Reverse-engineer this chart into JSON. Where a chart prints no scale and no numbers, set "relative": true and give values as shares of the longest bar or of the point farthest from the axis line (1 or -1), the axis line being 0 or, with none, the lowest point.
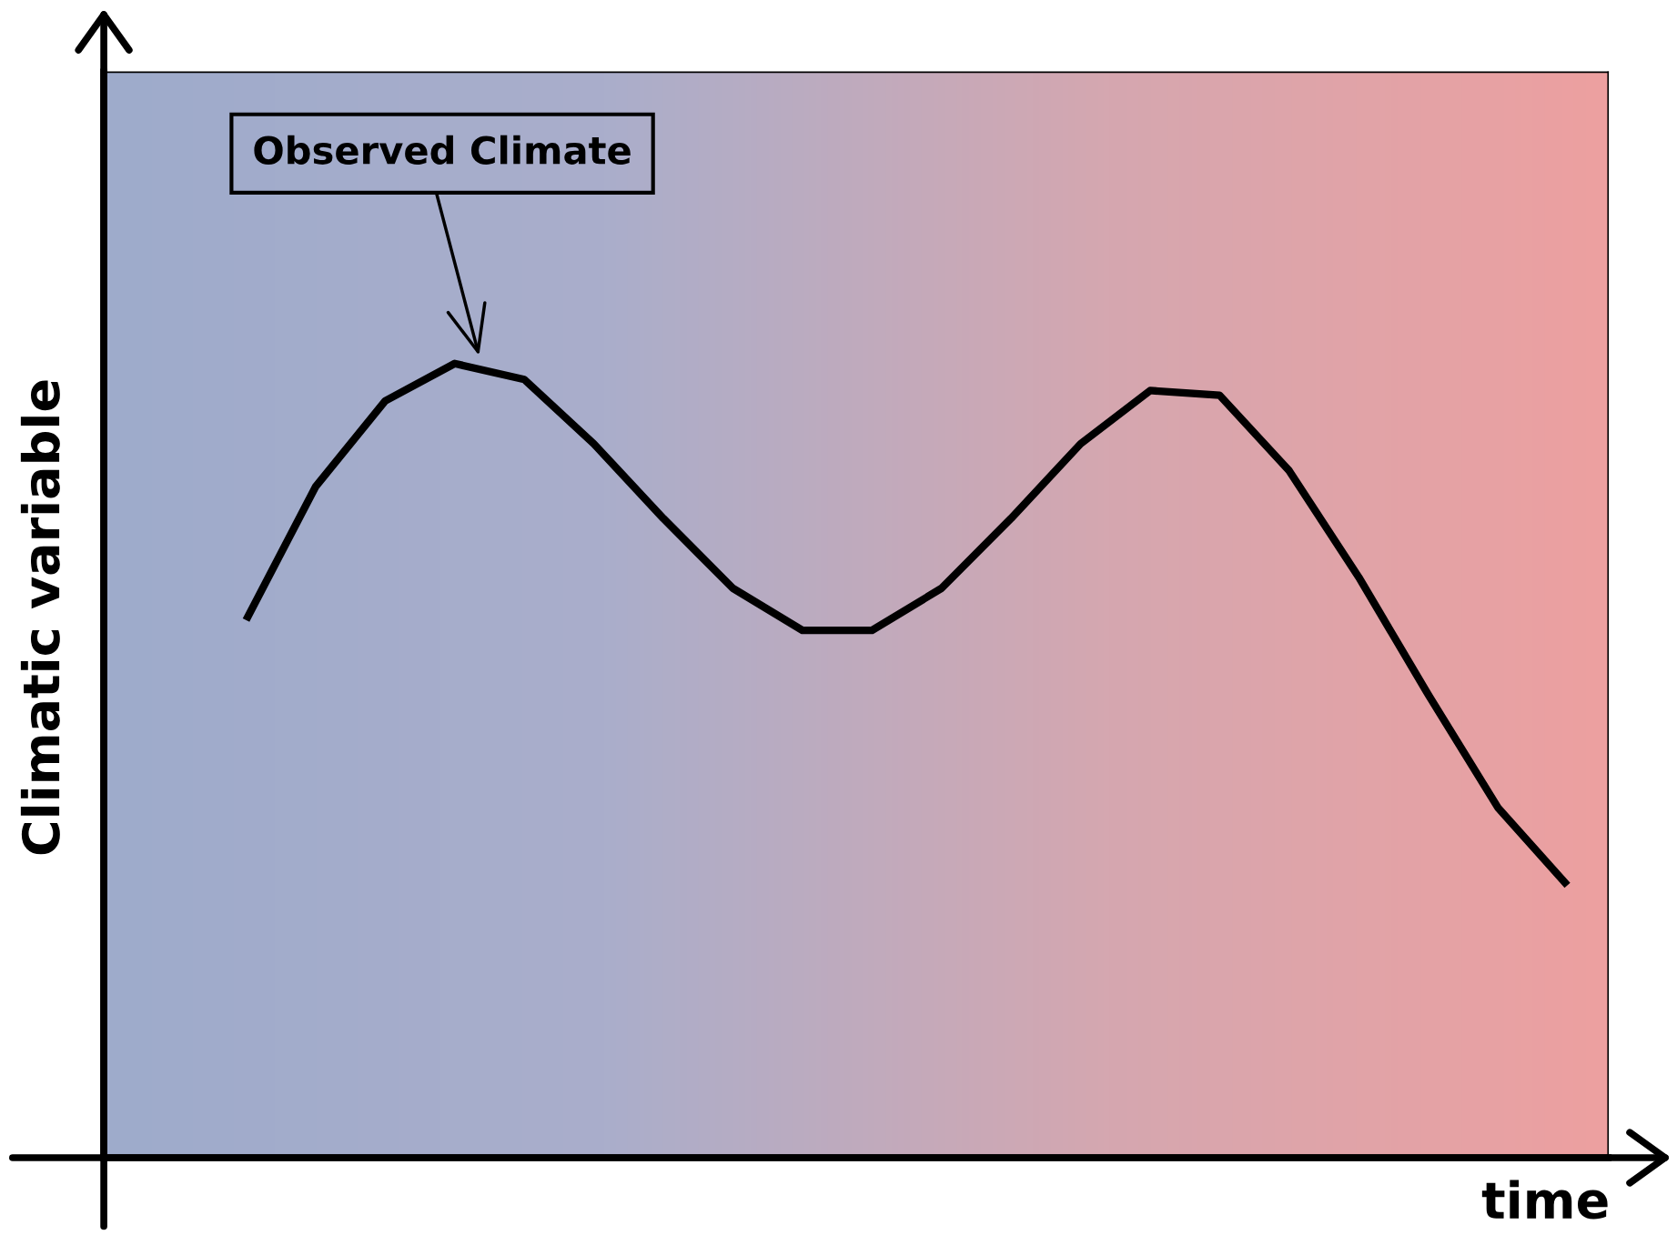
{
  "chart_data": {
    "type": "line",
    "relative": true,
    "xlabel": "time",
    "ylabel": "Climatic variable",
    "categories": [
      null,
      null,
      null,
      null,
      null,
      null,
      null,
      null,
      null,
      null,
      null,
      null,
      null,
      null,
      null,
      null,
      null,
      null,
      null,
      null
    ],
    "series": [
      {
        "color": "#000000",
        "values": [
          0.677,
          0.845,
          0.953,
          1.0,
          0.98,
          0.899,
          0.805,
          0.717,
          0.664,
          0.664,
          0.717,
          0.805,
          0.899,
          0.966,
          0.96,
          0.865,
          0.731,
          0.583,
          0.441,
          0.343
        ]
      }
    ],
    "annotations": [
      "Observed Climate"
    ],
    "marker": "none",
    "line_style": "solid"
  }
}
